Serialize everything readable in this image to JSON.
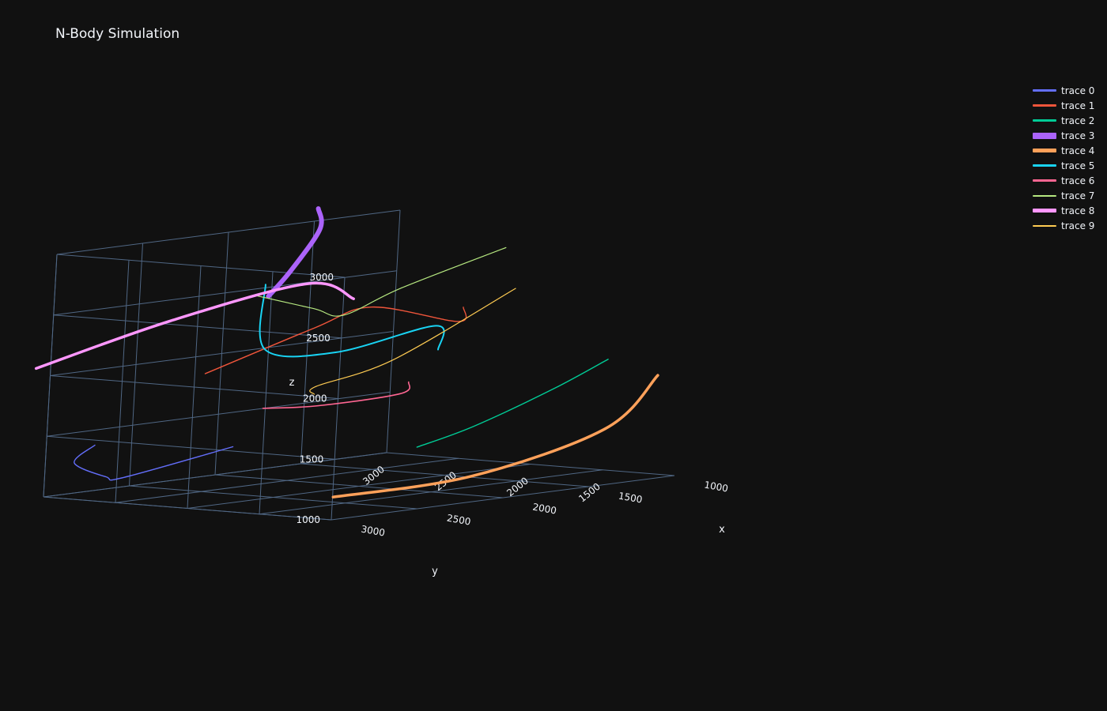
{
  "title": "N-Body Simulation",
  "chart_data": {
    "type": "line3d",
    "title": "N-Body Simulation",
    "axes": {
      "x": {
        "label": "x",
        "ticks": [
          1000,
          1500,
          2000,
          2500,
          3000
        ]
      },
      "y": {
        "label": "y",
        "ticks": [
          1500,
          2000,
          2500,
          3000
        ]
      },
      "z": {
        "label": "z",
        "ticks": [
          1000,
          1500,
          2000,
          2500,
          3000
        ]
      }
    },
    "grid": true,
    "legend_position": "top-right",
    "series": [
      {
        "name": "trace 0",
        "color": "#636efa",
        "width": 1.4,
        "points": [
          [
            3050,
            1650,
            1550
          ],
          [
            3300,
            2100,
            1300
          ],
          [
            3150,
            2400,
            1250
          ],
          [
            3000,
            2800,
            1300
          ],
          [
            2800,
            2900,
            1400
          ]
        ]
      },
      {
        "name": "trace 1",
        "color": "#EF553B",
        "width": 1.4,
        "points": [
          [
            1700,
            1700,
            2450
          ],
          [
            1600,
            1850,
            2300
          ],
          [
            1900,
            2100,
            2450
          ],
          [
            2100,
            2250,
            2300
          ],
          [
            2600,
            2400,
            2000
          ]
        ]
      },
      {
        "name": "trace 2",
        "color": "#00cc96",
        "width": 1.4,
        "points": [
          [
            1300,
            1150,
            2000
          ],
          [
            1400,
            1400,
            1750
          ],
          [
            1600,
            1700,
            1450
          ],
          [
            1800,
            1850,
            1300
          ]
        ]
      },
      {
        "name": "trace 3",
        "color": "#ab63fa",
        "width": 6,
        "points": [
          [
            1650,
            2800,
            3150
          ],
          [
            1550,
            2900,
            2950
          ],
          [
            1750,
            2850,
            2650
          ],
          [
            2000,
            2700,
            2500
          ]
        ]
      },
      {
        "name": "trace 4",
        "color": "#FFA15A",
        "width": 3.5,
        "points": [
          [
            1300,
            800,
            1900
          ],
          [
            1550,
            850,
            1500
          ],
          [
            2150,
            1050,
            1200
          ],
          [
            2700,
            1350,
            1100
          ]
        ]
      },
      {
        "name": "trace 5",
        "color": "#19d3f3",
        "width": 2,
        "points": [
          [
            1750,
            1800,
            2100
          ],
          [
            1600,
            2000,
            2250
          ],
          [
            2050,
            2150,
            2100
          ],
          [
            2300,
            2350,
            2150
          ],
          [
            1850,
            2900,
            2550
          ]
        ]
      },
      {
        "name": "trace 6",
        "color": "#FF6692",
        "width": 1.6,
        "points": [
          [
            1700,
            2050,
            1800
          ],
          [
            1700,
            2100,
            1700
          ],
          [
            2050,
            2250,
            1650
          ],
          [
            2250,
            2400,
            1650
          ]
        ]
      },
      {
        "name": "trace 7",
        "color": "#B6E880",
        "width": 1.2,
        "points": [
          [
            1300,
            1900,
            2850
          ],
          [
            1650,
            2200,
            2550
          ],
          [
            1850,
            2350,
            2350
          ],
          [
            1900,
            2500,
            2400
          ],
          [
            2000,
            2800,
            2500
          ]
        ]
      },
      {
        "name": "trace 8",
        "color": "#FF97FF",
        "width": 3.5,
        "points": [
          [
            2050,
            2050,
            2550
          ],
          [
            1900,
            2550,
            2600
          ],
          [
            2400,
            2900,
            2350
          ],
          [
            3000,
            3100,
            2050
          ]
        ]
      },
      {
        "name": "trace 9",
        "color": "#FECB52",
        "width": 1.2,
        "points": [
          [
            1400,
            1700,
            2550
          ],
          [
            1800,
            2050,
            2000
          ],
          [
            2200,
            2100,
            1850
          ],
          [
            2250,
            2050,
            1800
          ]
        ]
      }
    ]
  }
}
